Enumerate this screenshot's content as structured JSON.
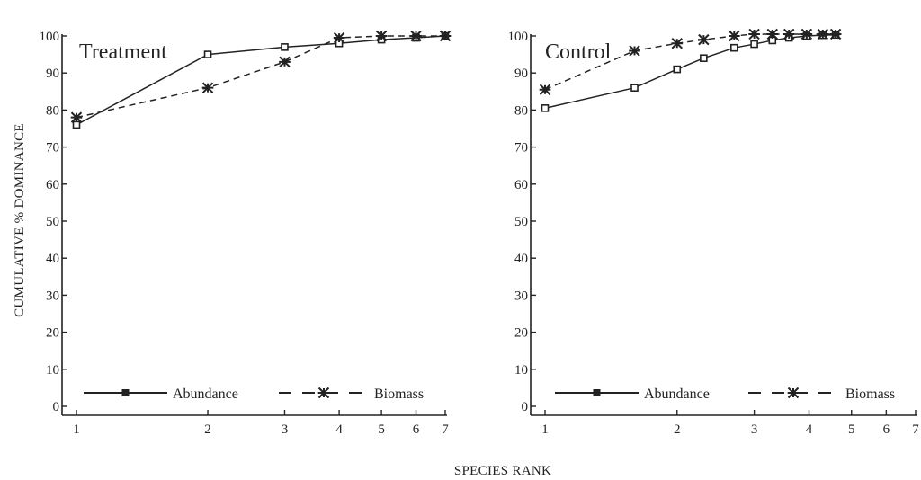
{
  "chart_data": {
    "type": "line",
    "ylabel": "CUMULATIVE % DOMINANCE",
    "xlabel": "SPECIES RANK",
    "x_scale": "log",
    "grid": false,
    "legend_position": "bottom",
    "panels": [
      {
        "title": "Treatment",
        "xlim": [
          1,
          7
        ],
        "ylim": [
          0,
          100
        ],
        "x_ticks": [
          1,
          2,
          3,
          4,
          5,
          6,
          7
        ],
        "y_ticks": [
          0,
          10,
          20,
          30,
          40,
          50,
          60,
          70,
          80,
          90,
          100
        ],
        "series": [
          {
            "name": "Abundance",
            "style": "solid",
            "marker": "square",
            "x": [
              1,
              2,
              3,
              4,
              5,
              6,
              7
            ],
            "y": [
              76,
              95,
              97,
              98,
              99,
              99.5,
              100
            ]
          },
          {
            "name": "Biomass",
            "style": "dashed",
            "marker": "star",
            "x": [
              1,
              2,
              3,
              4,
              5,
              6,
              7
            ],
            "y": [
              78,
              86,
              93,
              99.5,
              100,
              100,
              100
            ]
          }
        ]
      },
      {
        "title": "Control",
        "xlim": [
          1,
          7
        ],
        "ylim": [
          0,
          100
        ],
        "x_ticks": [
          1,
          2,
          3,
          4,
          5,
          6,
          7
        ],
        "y_ticks": [
          0,
          10,
          20,
          30,
          40,
          50,
          60,
          70,
          80,
          90,
          100
        ],
        "series": [
          {
            "name": "Abundance",
            "style": "solid",
            "marker": "square",
            "x": [
              1,
              1.6,
              2,
              2.3,
              2.7,
              3,
              3.3,
              3.6,
              3.95,
              4.3,
              4.6
            ],
            "y": [
              80.5,
              86,
              91,
              94,
              96.8,
              97.8,
              98.8,
              99.5,
              100,
              100.2,
              100.3
            ]
          },
          {
            "name": "Biomass",
            "style": "dashed",
            "marker": "star",
            "x": [
              1,
              1.6,
              2,
              2.3,
              2.7,
              3,
              3.3,
              3.6,
              3.95,
              4.3,
              4.6
            ],
            "y": [
              85.5,
              96,
              98,
              99,
              100,
              100.5,
              100.5,
              100.5,
              100.5,
              100.5,
              100.5
            ]
          }
        ]
      }
    ]
  },
  "legend": {
    "abundance": "Abundance",
    "biomass": "Biomass"
  },
  "colors": {
    "ink": "#222222",
    "background": "#ffffff"
  }
}
